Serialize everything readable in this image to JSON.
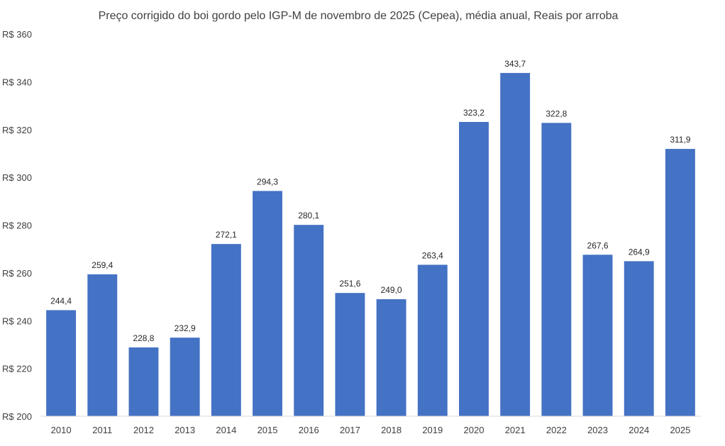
{
  "chart_data": {
    "type": "bar",
    "title": "Preço corrigido do boi gordo pelo IGP-M de novembro de 2025 (Cepea), média anual, Reais por arroba",
    "xlabel": "",
    "ylabel": "",
    "categories": [
      "2010",
      "2011",
      "2012",
      "2013",
      "2014",
      "2015",
      "2016",
      "2017",
      "2018",
      "2019",
      "2020",
      "2021",
      "2022",
      "2023",
      "2024",
      "2025"
    ],
    "values": [
      244.4,
      259.4,
      228.8,
      232.9,
      272.1,
      294.3,
      280.1,
      251.6,
      249.0,
      263.4,
      323.2,
      343.7,
      322.8,
      267.6,
      264.9,
      311.9
    ],
    "value_labels": [
      "244,4",
      "259,4",
      "228,8",
      "232,9",
      "272,1",
      "294,3",
      "280,1",
      "251,6",
      "249,0",
      "263,4",
      "323,2",
      "343,7",
      "322,8",
      "267,6",
      "264,9",
      "311,9"
    ],
    "ylim": [
      200,
      360
    ],
    "yticks": [
      200,
      220,
      240,
      260,
      280,
      300,
      320,
      340,
      360
    ],
    "ytick_labels": [
      "R$ 200",
      "R$ 220",
      "R$ 240",
      "R$ 260",
      "R$ 280",
      "R$ 300",
      "R$ 320",
      "R$ 340",
      "R$ 360"
    ],
    "grid": false,
    "legend": "none",
    "bar_color": "#4472c4"
  }
}
